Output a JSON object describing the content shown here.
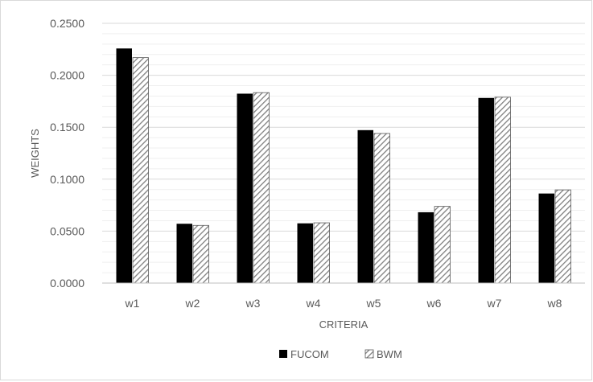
{
  "chart_data": {
    "type": "bar",
    "title": "",
    "xlabel": "CRITERIA",
    "ylabel": "WEIGHTS",
    "categories": [
      "w1",
      "w2",
      "w3",
      "w4",
      "w5",
      "w6",
      "w7",
      "w8"
    ],
    "series": [
      {
        "name": "FUCOM",
        "values": [
          0.2258,
          0.0571,
          0.1823,
          0.0575,
          0.1472,
          0.0682,
          0.1782,
          0.0862
        ],
        "fill": "#000000",
        "pattern": "solid"
      },
      {
        "name": "BWM",
        "values": [
          0.217,
          0.0555,
          0.1833,
          0.058,
          0.144,
          0.0738,
          0.1789,
          0.0897
        ],
        "fill": "#ffffff",
        "stroke": "#595959",
        "pattern": "diagonal-hatch"
      }
    ],
    "ylim": [
      0,
      0.25
    ],
    "yticks": [
      "0.0000",
      "0.0500",
      "0.1000",
      "0.1500",
      "0.2000",
      "0.2500"
    ],
    "grid": true,
    "legend": "bottom-center"
  }
}
